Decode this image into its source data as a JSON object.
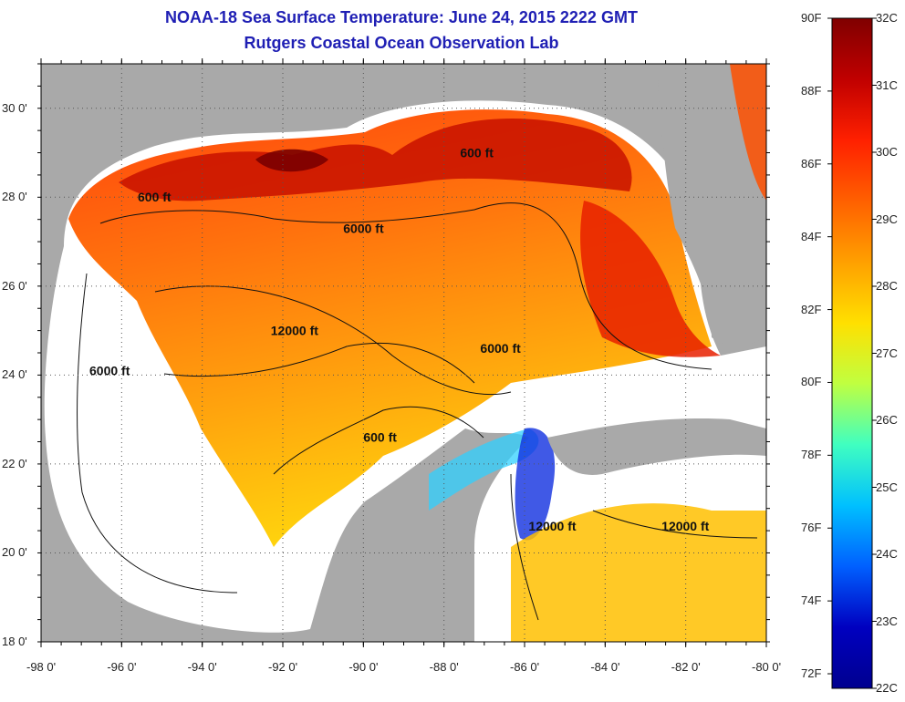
{
  "title": {
    "line1": "NOAA-18 Sea Surface Temperature:  June 24, 2015 2222 GMT",
    "line2": "Rutgers Coastal Ocean Observation Lab"
  },
  "map": {
    "lon_range": [
      -98,
      -80
    ],
    "lat_range": [
      18,
      31
    ],
    "x_ticks": [
      "-98 0'",
      "-96 0'",
      "-94 0'",
      "-92 0'",
      "-90 0'",
      "-88 0'",
      "-86 0'",
      "-84 0'",
      "-82 0'",
      "-80 0'"
    ],
    "y_ticks": [
      "30 0'",
      "28 0'",
      "26 0'",
      "24 0'",
      "22 0'",
      "20 0'",
      "18 0'"
    ],
    "grid": "dotted",
    "land_color": "#a9a9a9",
    "no_data_color": "#ffffff",
    "contour_labels": [
      {
        "text": "600 ft",
        "lon": -95.6,
        "lat": 27.9
      },
      {
        "text": "6000 ft",
        "lon": -90.5,
        "lat": 27.2
      },
      {
        "text": "600 ft",
        "lon": -87.6,
        "lat": 28.9
      },
      {
        "text": "12000 ft",
        "lon": -92.3,
        "lat": 24.9
      },
      {
        "text": "6000 ft",
        "lon": -96.8,
        "lat": 24.0
      },
      {
        "text": "6000 ft",
        "lon": -87.1,
        "lat": 24.5
      },
      {
        "text": "600 ft",
        "lon": -90.0,
        "lat": 22.5
      },
      {
        "text": "12000 ft",
        "lon": -85.9,
        "lat": 20.5
      },
      {
        "text": "12000 ft",
        "lon": -82.6,
        "lat": 20.5
      }
    ]
  },
  "colorbar": {
    "left_labels": [
      "90F",
      "88F",
      "86F",
      "84F",
      "82F",
      "80F",
      "78F",
      "76F",
      "74F",
      "72F"
    ],
    "right_labels": [
      "32C",
      "31C",
      "30C",
      "29C",
      "28C",
      "27C",
      "26C",
      "25C",
      "24C",
      "23C",
      "22C"
    ],
    "colors_top_to_bottom": [
      "#800000",
      "#c00000",
      "#ff2000",
      "#ff6000",
      "#ffa000",
      "#ffe000",
      "#c0ff40",
      "#40ffc0",
      "#00c0ff",
      "#0060ff",
      "#0000c0",
      "#00008f"
    ]
  }
}
